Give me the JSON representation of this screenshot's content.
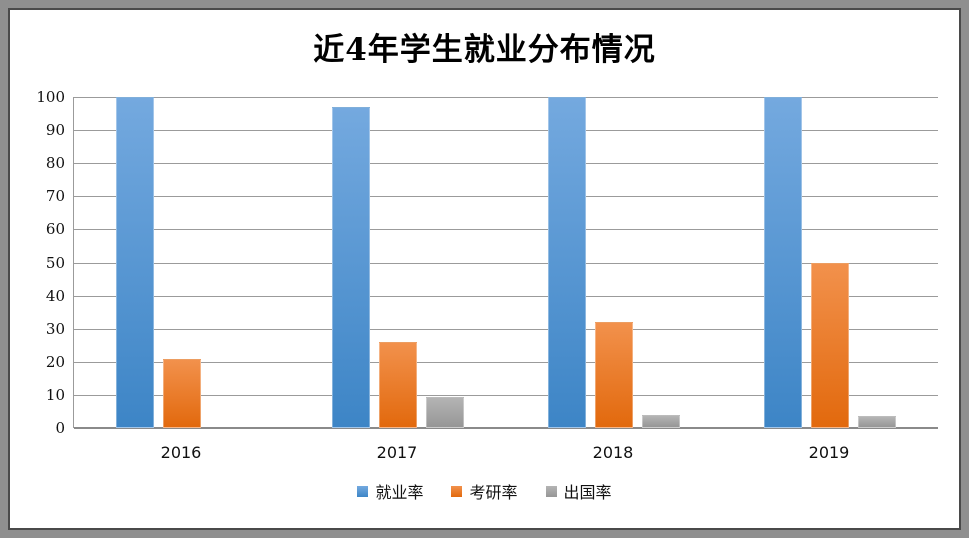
{
  "chart_data": {
    "type": "bar",
    "title": "近4年学生就业分布情况",
    "categories": [
      "2016",
      "2017",
      "2018",
      "2019"
    ],
    "series": [
      {
        "name": "就业率",
        "values": [
          100,
          97,
          100,
          100
        ],
        "color_top": "#74a9df",
        "color_bottom": "#3d85c6"
      },
      {
        "name": "考研率",
        "values": [
          21,
          26,
          32,
          50
        ],
        "color_top": "#f2914c",
        "color_bottom": "#e2690d"
      },
      {
        "name": "出国率",
        "values": [
          0,
          9.5,
          4,
          3.5
        ],
        "color_top": "#b4b4b4",
        "color_bottom": "#969696"
      }
    ],
    "xlabel": "",
    "ylabel": "",
    "ylim": [
      0,
      100
    ],
    "yticks": [
      0,
      10,
      20,
      30,
      40,
      50,
      60,
      70,
      80,
      90,
      100
    ],
    "grid": true,
    "legend_position": "bottom"
  }
}
